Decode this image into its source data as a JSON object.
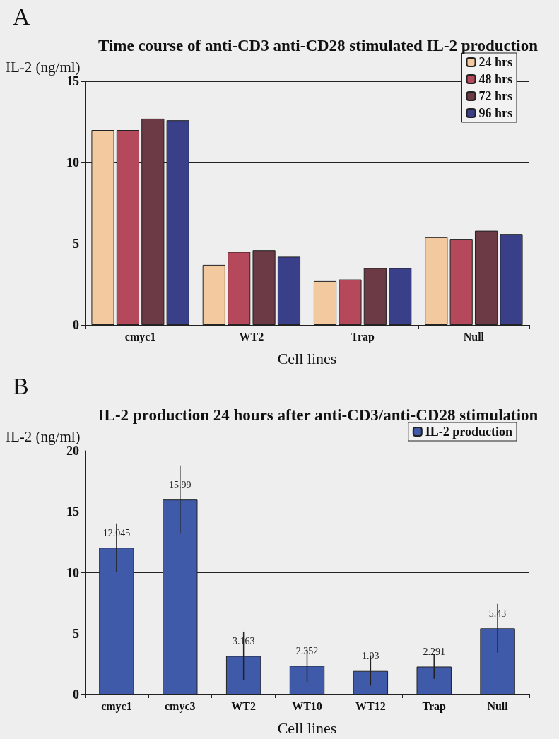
{
  "chart_data": [
    {
      "type": "bar",
      "title": "Time course of anti-CD3 anti-CD28 stimulated IL-2 production",
      "ylabel": "IL-2 (ng/ml)",
      "xlabel": "Cell lines",
      "annotations": [
        "A"
      ],
      "categories": [
        "cmyc1",
        "WT2",
        "Trap",
        "Null"
      ],
      "series": [
        {
          "name": "24 hrs",
          "color": "#f3c9a0",
          "values": [
            12.0,
            3.7,
            2.7,
            5.4
          ]
        },
        {
          "name": "48 hrs",
          "color": "#b5485a",
          "values": [
            12.0,
            4.5,
            2.8,
            5.3
          ]
        },
        {
          "name": "72 hrs",
          "color": "#6b3a44",
          "values": [
            12.7,
            4.6,
            3.5,
            5.8
          ]
        },
        {
          "name": "96 hrs",
          "color": "#3a3f8a",
          "values": [
            12.6,
            4.2,
            3.5,
            5.6
          ]
        }
      ],
      "ylim": [
        0,
        15
      ],
      "yticks": [
        0,
        5,
        10,
        15
      ],
      "grid": "y",
      "legend": "top right"
    },
    {
      "type": "bar",
      "title": "IL-2 production 24 hours after anti-CD3/anti-CD28 stimulation",
      "ylabel": "IL-2 (ng/ml)",
      "xlabel": "Cell lines",
      "annotations": [
        "B"
      ],
      "categories": [
        "cmyc1",
        "cmyc3",
        "WT2",
        "WT10",
        "WT12",
        "Trap",
        "Null"
      ],
      "series": [
        {
          "name": "IL-2 production",
          "color": "#3f5aa8",
          "values": [
            12.045,
            15.99,
            3.163,
            2.352,
            1.93,
            2.291,
            5.43
          ],
          "errors": [
            2,
            2.8,
            2,
            1.3,
            1.2,
            1,
            2
          ]
        }
      ],
      "ylim": [
        0,
        20
      ],
      "yticks": [
        0,
        5,
        10,
        15,
        20
      ],
      "grid": "y",
      "legend": "top right",
      "data_labels": true
    }
  ]
}
